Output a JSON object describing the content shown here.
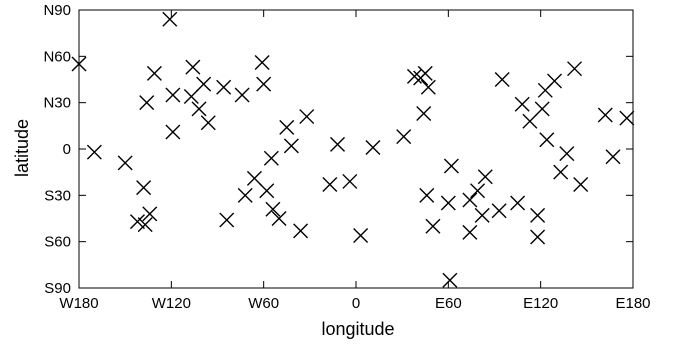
{
  "chart_data": {
    "type": "scatter",
    "title": "",
    "xlabel": "longitude",
    "ylabel": "latitude",
    "xlim": [
      -180,
      180
    ],
    "ylim": [
      -90,
      90
    ],
    "grid": false,
    "marker": "x",
    "x_ticks": [
      {
        "value": -180,
        "label": "W180"
      },
      {
        "value": -120,
        "label": "W120"
      },
      {
        "value": -60,
        "label": "W60"
      },
      {
        "value": 0,
        "label": "0"
      },
      {
        "value": 60,
        "label": "E60"
      },
      {
        "value": 120,
        "label": "E120"
      },
      {
        "value": 180,
        "label": "E180"
      }
    ],
    "y_ticks": [
      {
        "value": 90,
        "label": "N90"
      },
      {
        "value": 60,
        "label": "N60"
      },
      {
        "value": 30,
        "label": "N30"
      },
      {
        "value": 0,
        "label": "0"
      },
      {
        "value": -30,
        "label": "S30"
      },
      {
        "value": -60,
        "label": "S60"
      },
      {
        "value": -90,
        "label": "S90"
      }
    ],
    "series": [
      {
        "points": [
          {
            "x": -180,
            "y": 55
          },
          {
            "x": -170,
            "y": -2
          },
          {
            "x": -150,
            "y": -9
          },
          {
            "x": -142,
            "y": -47
          },
          {
            "x": -138,
            "y": -25
          },
          {
            "x": -137,
            "y": -49
          },
          {
            "x": -136,
            "y": 30
          },
          {
            "x": -134,
            "y": -42
          },
          {
            "x": -131,
            "y": 49
          },
          {
            "x": -121,
            "y": 84
          },
          {
            "x": -119,
            "y": 35
          },
          {
            "x": -119,
            "y": 11
          },
          {
            "x": -107,
            "y": 34
          },
          {
            "x": -106,
            "y": 53
          },
          {
            "x": -102,
            "y": 26
          },
          {
            "x": -99,
            "y": 42
          },
          {
            "x": -96,
            "y": 17
          },
          {
            "x": -86,
            "y": 40
          },
          {
            "x": -84,
            "y": -46
          },
          {
            "x": -74,
            "y": 35
          },
          {
            "x": -72,
            "y": -30
          },
          {
            "x": -66,
            "y": -19
          },
          {
            "x": -61,
            "y": 56
          },
          {
            "x": -60,
            "y": 42
          },
          {
            "x": -58,
            "y": -27
          },
          {
            "x": -55,
            "y": -6
          },
          {
            "x": -54,
            "y": -39
          },
          {
            "x": -50,
            "y": -45
          },
          {
            "x": -45,
            "y": 14
          },
          {
            "x": -42,
            "y": 2
          },
          {
            "x": -36,
            "y": -53
          },
          {
            "x": -32,
            "y": 21
          },
          {
            "x": -17,
            "y": -23
          },
          {
            "x": -12,
            "y": 3
          },
          {
            "x": -4,
            "y": -21
          },
          {
            "x": 3,
            "y": -56
          },
          {
            "x": 11,
            "y": 1
          },
          {
            "x": 31,
            "y": 8
          },
          {
            "x": 38,
            "y": 47
          },
          {
            "x": 42,
            "y": 46
          },
          {
            "x": 45,
            "y": 49
          },
          {
            "x": 44,
            "y": 23
          },
          {
            "x": 46,
            "y": -30
          },
          {
            "x": 47,
            "y": 40
          },
          {
            "x": 50,
            "y": -50
          },
          {
            "x": 60,
            "y": -35
          },
          {
            "x": 62,
            "y": -11
          },
          {
            "x": 61,
            "y": -85
          },
          {
            "x": 74,
            "y": -33
          },
          {
            "x": 74,
            "y": -54
          },
          {
            "x": 79,
            "y": -27
          },
          {
            "x": 82,
            "y": -43
          },
          {
            "x": 84,
            "y": -18
          },
          {
            "x": 93,
            "y": -40
          },
          {
            "x": 95,
            "y": 45
          },
          {
            "x": 105,
            "y": -35
          },
          {
            "x": 108,
            "y": 29
          },
          {
            "x": 113,
            "y": 18
          },
          {
            "x": 118,
            "y": -43
          },
          {
            "x": 118,
            "y": -57
          },
          {
            "x": 121,
            "y": 26
          },
          {
            "x": 123,
            "y": 38
          },
          {
            "x": 124,
            "y": 6
          },
          {
            "x": 129,
            "y": 44
          },
          {
            "x": 133,
            "y": -15
          },
          {
            "x": 137,
            "y": -3
          },
          {
            "x": 142,
            "y": 52
          },
          {
            "x": 146,
            "y": -23
          },
          {
            "x": 162,
            "y": 22
          },
          {
            "x": 167,
            "y": -5
          },
          {
            "x": 176,
            "y": 20
          }
        ]
      }
    ]
  }
}
